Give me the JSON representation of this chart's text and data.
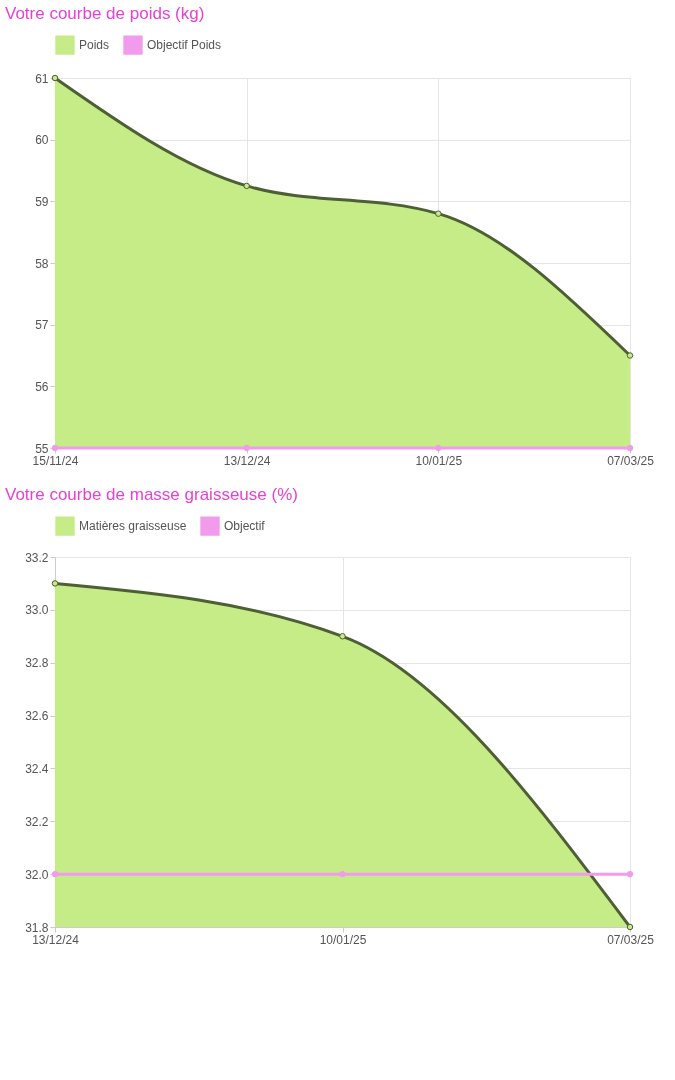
{
  "chart_data": [
    {
      "type": "area",
      "title": "Votre courbe de poids (kg)",
      "categories": [
        "15/11/24",
        "13/12/24",
        "10/01/25",
        "07/03/25"
      ],
      "series": [
        {
          "name": "Poids",
          "color": "#c5ec86",
          "values": [
            61,
            59.25,
            58.8,
            56.5
          ]
        },
        {
          "name": "Objectif Poids",
          "type": "line",
          "color": "#f29bec",
          "values": [
            55,
            55,
            55,
            55
          ]
        }
      ],
      "ylim": [
        55,
        61
      ],
      "yticks": [
        55,
        56,
        57,
        58,
        59,
        60,
        61
      ],
      "grid": true,
      "legend": "top",
      "marker": "circle"
    },
    {
      "type": "area",
      "title": "Votre courbe de masse graisseuse (%)",
      "categories": [
        "13/12/24",
        "10/01/25",
        "07/03/25"
      ],
      "series": [
        {
          "name": "Matières graisseuse",
          "color": "#c5ec86",
          "values": [
            33.1,
            32.9,
            31.8
          ]
        },
        {
          "name": "Objectif",
          "type": "line",
          "color": "#f29bec",
          "values": [
            32.0,
            32.0,
            32.0
          ]
        }
      ],
      "ylim": [
        31.8,
        33.2
      ],
      "yticks": [
        {
          "value": 31.8,
          "label": "31.8"
        },
        {
          "value": 32.0,
          "label": "32.0"
        },
        {
          "value": 32.2,
          "label": "32.2"
        },
        {
          "value": 32.4,
          "label": "32.4"
        },
        {
          "value": 32.6,
          "label": "32.6"
        },
        {
          "value": 32.8,
          "label": "32.8"
        },
        {
          "value": 33.0,
          "label": "33.0"
        },
        {
          "value": 33.2,
          "label": "33.2"
        }
      ],
      "grid": true,
      "legend": "top",
      "marker": "circle"
    }
  ]
}
